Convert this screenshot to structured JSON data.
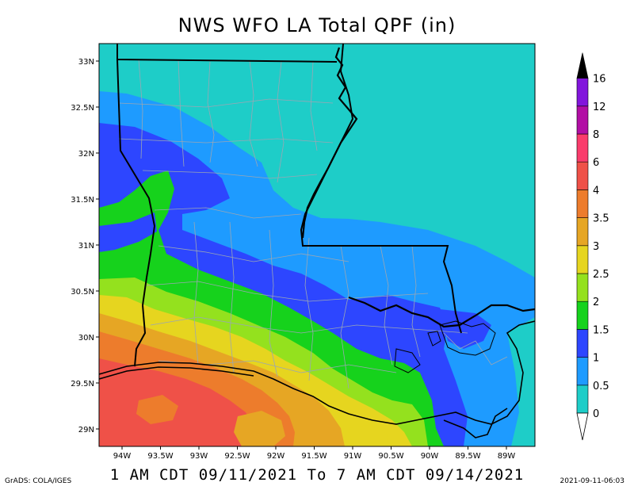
{
  "title": "NWS WFO LA Total QPF (in)",
  "subtitle": "1 AM CDT 09/11/2021 To 7 AM CDT 09/14/2021",
  "credit": "GrADS: COLA/IGES",
  "timestamp": "2021-09-11-06:03",
  "lat_labels": [
    "33N",
    "32.5N",
    "32N",
    "31.5N",
    "31N",
    "30.5N",
    "30N",
    "29.5N",
    "29N"
  ],
  "lon_labels": [
    "94W",
    "93.5W",
    "93W",
    "92.5W",
    "92W",
    "91.5W",
    "91W",
    "90.5W",
    "90W",
    "89.5W",
    "89W"
  ],
  "colorbar": {
    "labels": [
      "0",
      "0.5",
      "1",
      "1.5",
      "2",
      "2.5",
      "3",
      "3.5",
      "4",
      "6",
      "8",
      "12",
      "16"
    ],
    "colors": [
      "#1ecdc8",
      "#1e9bff",
      "#2d46ff",
      "#16d21c",
      "#94e11e",
      "#e6d51f",
      "#e6a624",
      "#ed7c2c",
      "#ef5148",
      "#fa3c6c",
      "#b20fa5",
      "#8216dc"
    ]
  }
}
